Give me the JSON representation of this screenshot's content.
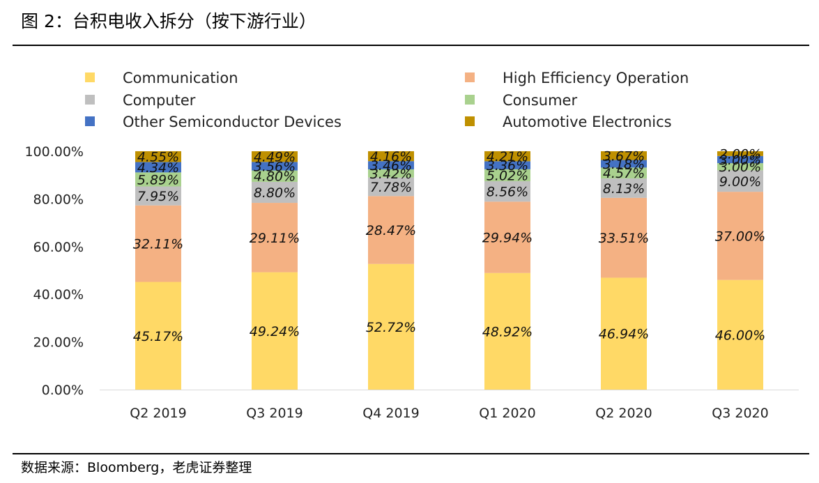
{
  "figure_title": "图 2：台积电收入拆分（按下游行业）",
  "source": "数据来源：Bloomberg，老虎证券整理",
  "chart_data": {
    "type": "bar",
    "stacked": true,
    "categories": [
      "Q2 2019",
      "Q3 2019",
      "Q4 2019",
      "Q1 2020",
      "Q2 2020",
      "Q3 2020"
    ],
    "series": [
      {
        "name": "Communication",
        "color": "#FFD966",
        "values": [
          45.17,
          49.24,
          52.72,
          48.92,
          46.94,
          46.0
        ],
        "labels": [
          "45.17%",
          "49.24%",
          "52.72%",
          "48.92%",
          "46.94%",
          "46.00%"
        ]
      },
      {
        "name": "High Efficiency Operation",
        "color": "#F4B183",
        "values": [
          32.11,
          29.11,
          28.47,
          29.94,
          33.51,
          37.0
        ],
        "labels": [
          "32.11%",
          "29.11%",
          "28.47%",
          "29.94%",
          "33.51%",
          "37.00%"
        ]
      },
      {
        "name": "Computer",
        "color": "#BFBFBF",
        "values": [
          7.95,
          8.8,
          7.78,
          8.56,
          8.13,
          9.0
        ],
        "labels": [
          "7.95%",
          "8.80%",
          "7.78%",
          "8.56%",
          "8.13%",
          "9.00%"
        ]
      },
      {
        "name": "Consumer",
        "color": "#A9D18E",
        "values": [
          5.89,
          4.8,
          3.42,
          5.02,
          4.57,
          3.0
        ],
        "labels": [
          "5.89%",
          "4.80%",
          "3.42%",
          "5.02%",
          "4.57%",
          "3.00%"
        ]
      },
      {
        "name": "Other Semiconductor Devices",
        "color": "#4472C4",
        "values": [
          4.34,
          3.56,
          3.46,
          3.36,
          3.18,
          3.0
        ],
        "labels": [
          "4.34%",
          "3.56%",
          "3.46%",
          "3.36%",
          "3.18%",
          "3.00%"
        ]
      },
      {
        "name": "Automotive Electronics",
        "color": "#BF9000",
        "values": [
          4.55,
          4.49,
          4.16,
          4.21,
          3.67,
          2.0
        ],
        "labels": [
          "4.55%",
          "4.49%",
          "4.16%",
          "4.21%",
          "3.67%",
          "2.00%"
        ]
      }
    ],
    "legend_order": [
      "Communication",
      "High Efficiency Operation",
      "Computer",
      "Consumer",
      "Other Semiconductor Devices",
      "Automotive Electronics"
    ],
    "y_ticks": [
      "0.00%",
      "20.00%",
      "40.00%",
      "60.00%",
      "80.00%",
      "100.00%"
    ],
    "ylim": [
      0,
      100
    ],
    "grid": false,
    "legend_position": "top"
  }
}
